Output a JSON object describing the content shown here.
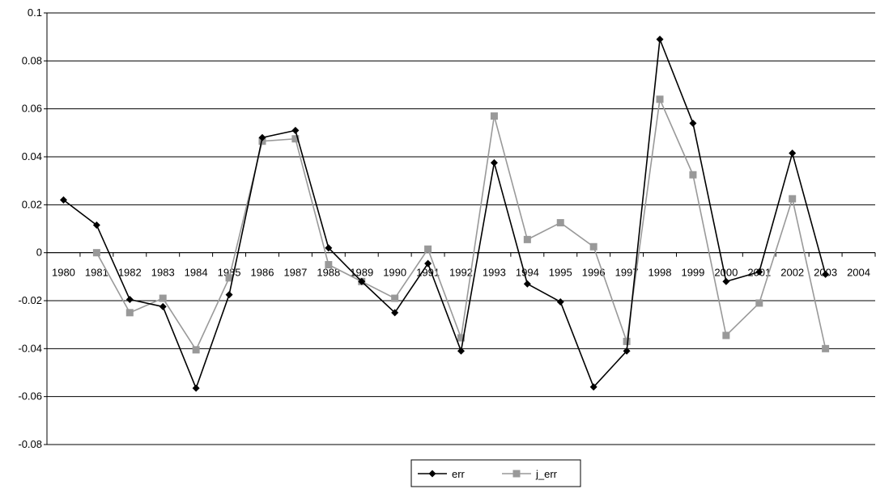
{
  "chart_data": {
    "type": "line",
    "categories": [
      "1980",
      "1981",
      "1982",
      "1983",
      "1984",
      "1985",
      "1986",
      "1987",
      "1988",
      "1989",
      "1990",
      "1991",
      "1992",
      "1993",
      "1994",
      "1995",
      "1996",
      "1997",
      "1998",
      "1999",
      "2000",
      "2001",
      "2002",
      "2003",
      "2004"
    ],
    "ylim": [
      -0.08,
      0.1
    ],
    "yticks": [
      -0.08,
      -0.06,
      -0.04,
      -0.02,
      0,
      0.02,
      0.04,
      0.06,
      0.08,
      0.1
    ],
    "ytick_labels": [
      "-0.08",
      "-0.06",
      "-0.04",
      "-0.02",
      "0",
      "0.02",
      "0.04",
      "0.06",
      "0.08",
      "0.1"
    ],
    "grid": true,
    "legend_position": "bottom-center",
    "series": [
      {
        "name": "err",
        "color": "#000000",
        "marker": "diamond",
        "values": [
          0.022,
          0.0115,
          -0.0195,
          -0.0225,
          -0.0565,
          -0.0175,
          0.048,
          0.051,
          0.002,
          -0.012,
          -0.025,
          -0.0045,
          -0.041,
          0.0375,
          -0.013,
          -0.0205,
          -0.056,
          -0.041,
          0.089,
          0.054,
          -0.012,
          -0.008,
          0.0415,
          -0.009,
          null
        ]
      },
      {
        "name": "j_err",
        "color": "#999999",
        "marker": "square",
        "values": [
          null,
          0.0,
          -0.025,
          -0.019,
          -0.0405,
          -0.0105,
          0.0465,
          0.0475,
          -0.005,
          -0.012,
          -0.019,
          0.0015,
          -0.0355,
          0.057,
          0.0055,
          0.0125,
          0.0025,
          -0.037,
          0.064,
          0.0325,
          -0.0345,
          -0.021,
          0.0225,
          -0.04,
          null
        ]
      }
    ]
  }
}
